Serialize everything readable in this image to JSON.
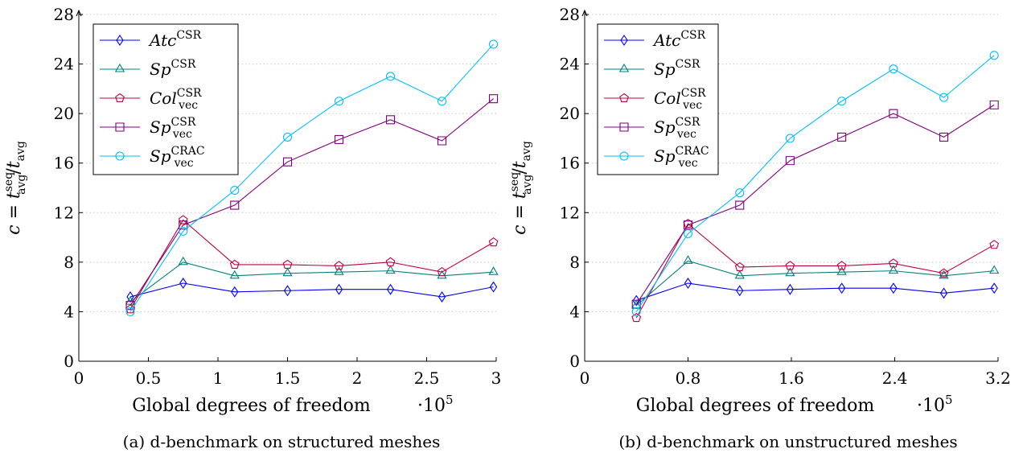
{
  "figure": {
    "y_label": {
      "c": "c",
      "eq": " = ",
      "t": "t",
      "sup": "seq",
      "sub": "avg",
      "slash": "/"
    },
    "x_multiplier": {
      "dot": "·",
      "base": "10",
      "exp": "5"
    },
    "legend_entries": [
      {
        "base": "Atc",
        "sup": "CSR",
        "sub": ""
      },
      {
        "base": "Sp",
        "sup": "CSR",
        "sub": ""
      },
      {
        "base": "Col",
        "sup": "CSR",
        "sub": "vec"
      },
      {
        "base": "Sp",
        "sup": "CSR",
        "sub": "vec"
      },
      {
        "base": "Sp",
        "sup": "CRAC",
        "sub": "vec"
      }
    ]
  },
  "chart_data": [
    {
      "type": "line",
      "caption": "(a) d-benchmark on structured meshes",
      "xlabel": "Global degrees of freedom",
      "x_scale_note": "·10^5",
      "ylabel": "c = t_avg^seq / t_avg",
      "xlim": [
        0,
        3
      ],
      "ylim": [
        0,
        28
      ],
      "xticks": [
        "0",
        "0.5",
        "1",
        "1.5",
        "2",
        "2.5",
        "3"
      ],
      "xtick_values": [
        0,
        0.5,
        1,
        1.5,
        2,
        2.5,
        3
      ],
      "yticks": [
        "0",
        "4",
        "8",
        "12",
        "16",
        "20",
        "24",
        "28"
      ],
      "ytick_values": [
        0,
        4,
        8,
        12,
        16,
        20,
        24,
        28
      ],
      "x": [
        0.37,
        0.75,
        1.12,
        1.5,
        1.87,
        2.24,
        2.61,
        2.98
      ],
      "series": [
        {
          "name": "Atc^CSR",
          "color": "#0000ff",
          "marker": "diamond",
          "values": [
            5.2,
            6.3,
            5.6,
            5.7,
            5.8,
            5.8,
            5.2,
            6.0
          ]
        },
        {
          "name": "Sp^CSR",
          "color": "#008080",
          "marker": "triangle",
          "values": [
            4.8,
            8.0,
            6.9,
            7.1,
            7.2,
            7.3,
            6.9,
            7.2
          ]
        },
        {
          "name": "Col_vec^CSR",
          "color": "#bf0040",
          "marker": "pentagon",
          "values": [
            4.2,
            11.4,
            7.8,
            7.8,
            7.7,
            8.0,
            7.2,
            9.6
          ]
        },
        {
          "name": "Sp_vec^CSR",
          "color": "#800080",
          "marker": "square",
          "values": [
            4.5,
            11.0,
            12.6,
            16.1,
            17.9,
            19.5,
            17.8,
            21.2
          ]
        },
        {
          "name": "Sp_vec^CRAC",
          "color": "#00bfff",
          "marker": "circle",
          "values": [
            4.0,
            10.5,
            13.8,
            18.1,
            21.0,
            23.0,
            21.0,
            25.6
          ]
        }
      ],
      "grid": true,
      "legend": "top-left"
    },
    {
      "type": "line",
      "caption": "(b) d-benchmark on unstructured meshes",
      "xlabel": "Global degrees of freedom",
      "x_scale_note": "·10^5",
      "ylabel": "c = t_avg^seq / t_avg",
      "xlim": [
        0,
        3.2
      ],
      "ylim": [
        0,
        28
      ],
      "xticks": [
        "0",
        "0.8",
        "1.6",
        "2.4",
        "3.2"
      ],
      "xtick_values": [
        0,
        0.8,
        1.6,
        2.4,
        3.2
      ],
      "yticks": [
        "0",
        "4",
        "8",
        "12",
        "16",
        "20",
        "24",
        "28"
      ],
      "ytick_values": [
        0,
        4,
        8,
        12,
        16,
        20,
        24,
        28
      ],
      "x": [
        0.4,
        0.8,
        1.2,
        1.59,
        1.99,
        2.39,
        2.78,
        3.17
      ],
      "series": [
        {
          "name": "Atc^CSR",
          "color": "#0000ff",
          "marker": "diamond",
          "values": [
            4.9,
            6.3,
            5.7,
            5.8,
            5.9,
            5.9,
            5.5,
            5.9
          ]
        },
        {
          "name": "Sp^CSR",
          "color": "#008080",
          "marker": "triangle",
          "values": [
            4.5,
            8.1,
            6.9,
            7.1,
            7.2,
            7.3,
            6.9,
            7.3
          ]
        },
        {
          "name": "Col_vec^CSR",
          "color": "#bf0040",
          "marker": "pentagon",
          "values": [
            3.5,
            11.1,
            7.6,
            7.7,
            7.7,
            7.9,
            7.1,
            9.4
          ]
        },
        {
          "name": "Sp_vec^CSR",
          "color": "#800080",
          "marker": "square",
          "values": [
            4.6,
            11.0,
            12.6,
            16.2,
            18.1,
            20.0,
            18.1,
            20.7
          ]
        },
        {
          "name": "Sp_vec^CRAC",
          "color": "#00bfff",
          "marker": "circle",
          "values": [
            4.0,
            10.3,
            13.6,
            18.0,
            21.0,
            23.6,
            21.3,
            24.7
          ]
        }
      ],
      "grid": true,
      "legend": "top-left"
    }
  ]
}
